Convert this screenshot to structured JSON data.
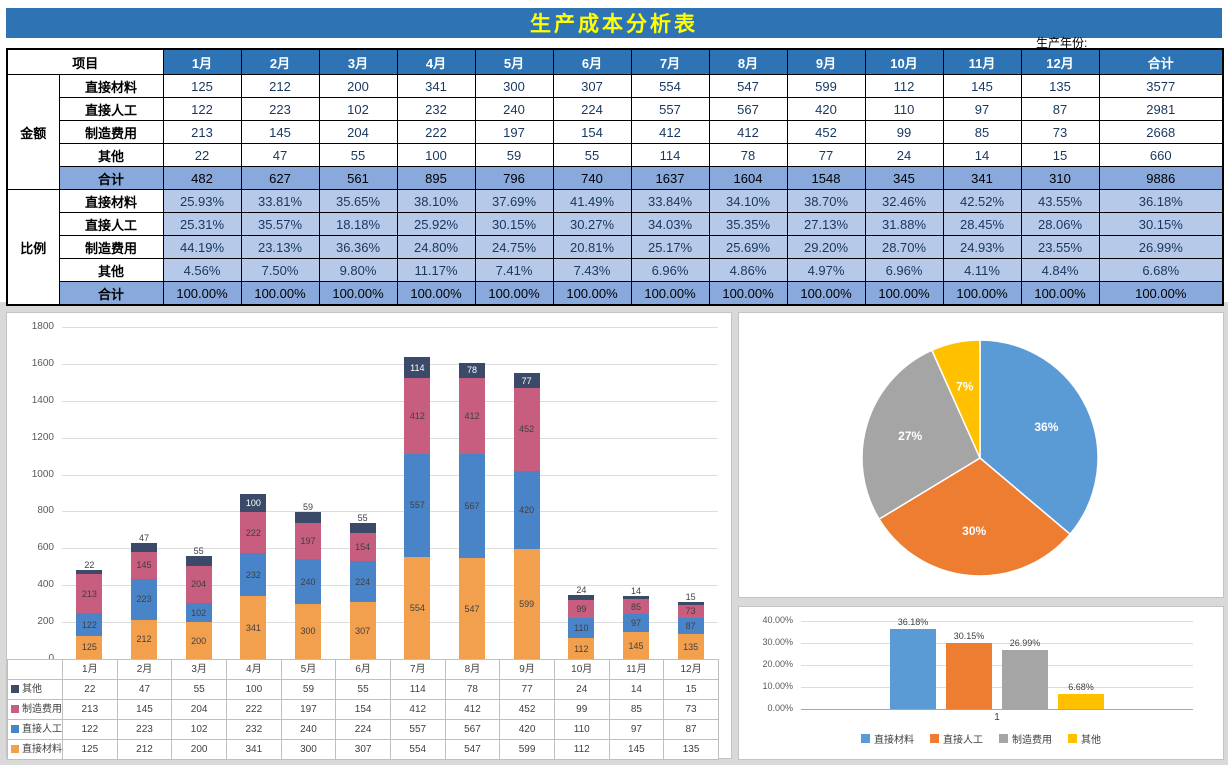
{
  "page": {
    "title": "生产成本分析表",
    "year_label": "生产年份:"
  },
  "colors": {
    "title_bar": "#2E74B5",
    "title_text": "#FFFF00",
    "header_blue": "#2E74B5",
    "ratio_row": "#B7C9E9",
    "total_row": "#89A9DC",
    "number_text": "#17375E"
  },
  "table": {
    "corner_label": "项目",
    "months": [
      "1月",
      "2月",
      "3月",
      "4月",
      "5月",
      "6月",
      "7月",
      "8月",
      "9月",
      "10月",
      "11月",
      "12月"
    ],
    "total_col_label": "合计",
    "sections": [
      {
        "group_label": "金额",
        "rows": [
          {
            "label": "直接材料",
            "values": [
              "125",
              "212",
              "200",
              "341",
              "300",
              "307",
              "554",
              "547",
              "599",
              "112",
              "145",
              "135"
            ],
            "total": "3577"
          },
          {
            "label": "直接人工",
            "values": [
              "122",
              "223",
              "102",
              "232",
              "240",
              "224",
              "557",
              "567",
              "420",
              "110",
              "97",
              "87"
            ],
            "total": "2981"
          },
          {
            "label": "制造费用",
            "values": [
              "213",
              "145",
              "204",
              "222",
              "197",
              "154",
              "412",
              "412",
              "452",
              "99",
              "85",
              "73"
            ],
            "total": "2668"
          },
          {
            "label": "其他",
            "values": [
              "22",
              "47",
              "55",
              "100",
              "59",
              "55",
              "114",
              "78",
              "77",
              "24",
              "14",
              "15"
            ],
            "total": "660"
          }
        ],
        "total_row": {
          "label": "合计",
          "values": [
            "482",
            "627",
            "561",
            "895",
            "796",
            "740",
            "1637",
            "1604",
            "1548",
            "345",
            "341",
            "310"
          ],
          "total": "9886"
        }
      },
      {
        "group_label": "比例",
        "rows": [
          {
            "label": "直接材料",
            "values": [
              "25.93%",
              "33.81%",
              "35.65%",
              "38.10%",
              "37.69%",
              "41.49%",
              "33.84%",
              "34.10%",
              "38.70%",
              "32.46%",
              "42.52%",
              "43.55%"
            ],
            "total": "36.18%"
          },
          {
            "label": "直接人工",
            "values": [
              "25.31%",
              "35.57%",
              "18.18%",
              "25.92%",
              "30.15%",
              "30.27%",
              "34.03%",
              "35.35%",
              "27.13%",
              "31.88%",
              "28.45%",
              "28.06%"
            ],
            "total": "30.15%"
          },
          {
            "label": "制造费用",
            "values": [
              "44.19%",
              "23.13%",
              "36.36%",
              "24.80%",
              "24.75%",
              "20.81%",
              "25.17%",
              "25.69%",
              "29.20%",
              "28.70%",
              "24.93%",
              "23.55%"
            ],
            "total": "26.99%"
          },
          {
            "label": "其他",
            "values": [
              "4.56%",
              "7.50%",
              "9.80%",
              "11.17%",
              "7.41%",
              "7.43%",
              "6.96%",
              "4.86%",
              "4.97%",
              "6.96%",
              "4.11%",
              "4.84%"
            ],
            "total": "6.68%"
          }
        ],
        "total_row": {
          "label": "合计",
          "values": [
            "100.00%",
            "100.00%",
            "100.00%",
            "100.00%",
            "100.00%",
            "100.00%",
            "100.00%",
            "100.00%",
            "100.00%",
            "100.00%",
            "100.00%",
            "100.00%"
          ],
          "total": "100.00%"
        }
      }
    ]
  },
  "chart_data": [
    {
      "type": "bar",
      "stacked": true,
      "categories": [
        "1月",
        "2月",
        "3月",
        "4月",
        "5月",
        "6月",
        "7月",
        "8月",
        "9月",
        "10月",
        "11月",
        "12月"
      ],
      "series": [
        {
          "name": "直接材料",
          "color": "#F2A04E",
          "values": [
            125,
            212,
            200,
            341,
            300,
            307,
            554,
            547,
            599,
            112,
            145,
            135
          ]
        },
        {
          "name": "直接人工",
          "color": "#4A84C8",
          "values": [
            122,
            223,
            102,
            232,
            240,
            224,
            557,
            567,
            420,
            110,
            97,
            87
          ]
        },
        {
          "name": "制造费用",
          "color": "#C75D7F",
          "values": [
            213,
            145,
            204,
            222,
            197,
            154,
            412,
            412,
            452,
            99,
            85,
            73
          ]
        },
        {
          "name": "其他",
          "color": "#3B4A68",
          "label_color": "#FFFFFF",
          "values": [
            22,
            47,
            55,
            100,
            59,
            55,
            114,
            78,
            77,
            24,
            14,
            15
          ]
        }
      ],
      "ylim": [
        0,
        1800
      ],
      "yticks": [
        0,
        200,
        400,
        600,
        800,
        1000,
        1200,
        1400,
        1600,
        1800
      ],
      "grid": true,
      "data_table": true,
      "legend_position": "table-left"
    },
    {
      "type": "pie",
      "labels": [
        "直接材料",
        "直接人工",
        "制造费用",
        "其他"
      ],
      "values": [
        36.18,
        30.15,
        26.99,
        6.68
      ],
      "colors": [
        "#5B9BD5",
        "#ED7D31",
        "#A5A5A5",
        "#FFC000"
      ],
      "slice_labels": [
        "36%",
        "30%",
        "27%",
        "7%"
      ],
      "legend": false
    },
    {
      "type": "bar",
      "categories": [
        "1"
      ],
      "series": [
        {
          "name": "直接材料",
          "color": "#5B9BD5",
          "value": 36.18,
          "label": "36.18%"
        },
        {
          "name": "直接人工",
          "color": "#ED7D31",
          "value": 30.15,
          "label": "30.15%"
        },
        {
          "name": "制造费用",
          "color": "#A5A5A5",
          "value": 26.99,
          "label": "26.99%"
        },
        {
          "name": "其他",
          "color": "#FFC000",
          "value": 6.68,
          "label": "6.68%"
        }
      ],
      "ylim": [
        0,
        40
      ],
      "yticks": [
        0,
        10,
        20,
        30,
        40
      ],
      "ytick_labels": [
        "0.00%",
        "10.00%",
        "20.00%",
        "30.00%",
        "40.00%"
      ],
      "grid": true,
      "legend_position": "bottom"
    }
  ]
}
